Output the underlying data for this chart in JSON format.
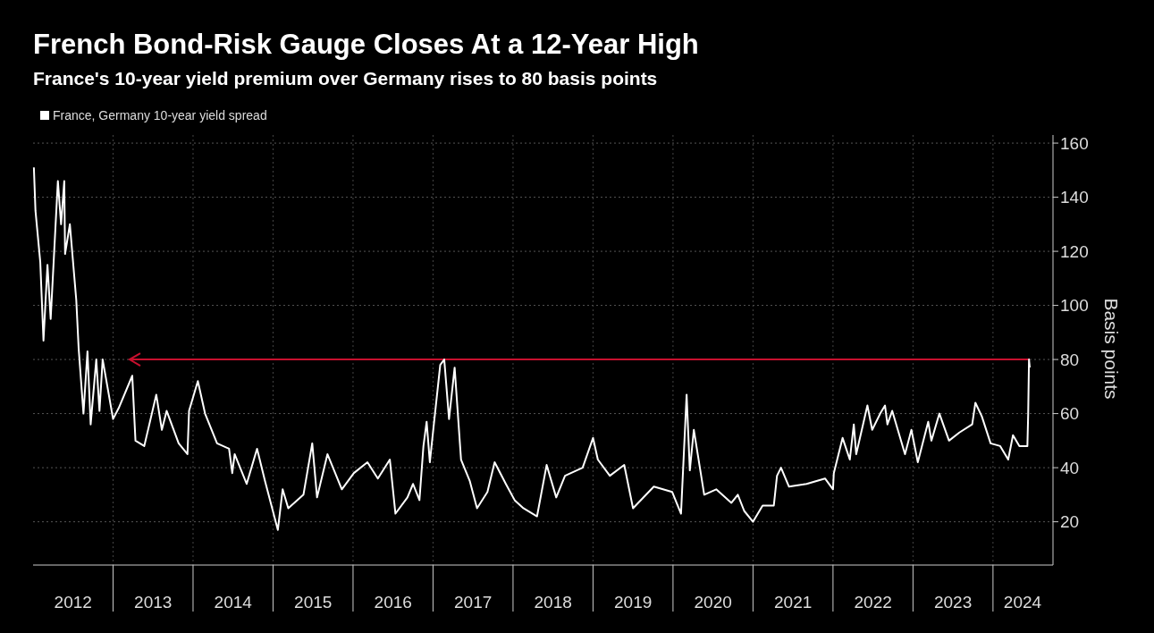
{
  "chart_data": {
    "type": "line",
    "title": "French Bond-Risk Gauge Closes At a 12-Year High",
    "subtitle": "France's 10-year yield premium over Germany rises to 80 basis points",
    "ylabel": "Basis points",
    "legend": "top left",
    "grid": true,
    "marker": "none",
    "line_style": "solid",
    "xlim": [
      2012,
      2024.75
    ],
    "ylim": [
      4,
      163
    ],
    "xticks": [
      {
        "value": 2012.5,
        "label": "2012"
      },
      {
        "value": 2013,
        "label": null
      },
      {
        "value": 2013.5,
        "label": "2013"
      },
      {
        "value": 2014,
        "label": null
      },
      {
        "value": 2014.5,
        "label": "2014"
      },
      {
        "value": 2015,
        "label": null
      },
      {
        "value": 2015.5,
        "label": "2015"
      },
      {
        "value": 2016,
        "label": null
      },
      {
        "value": 2016.5,
        "label": "2016"
      },
      {
        "value": 2017,
        "label": null
      },
      {
        "value": 2017.5,
        "label": "2017"
      },
      {
        "value": 2018,
        "label": null
      },
      {
        "value": 2018.5,
        "label": "2018"
      },
      {
        "value": 2019,
        "label": null
      },
      {
        "value": 2019.5,
        "label": "2019"
      },
      {
        "value": 2020,
        "label": null
      },
      {
        "value": 2020.5,
        "label": "2020"
      },
      {
        "value": 2021,
        "label": null
      },
      {
        "value": 2021.5,
        "label": "2021"
      },
      {
        "value": 2022,
        "label": null
      },
      {
        "value": 2022.5,
        "label": "2022"
      },
      {
        "value": 2023,
        "label": null
      },
      {
        "value": 2023.5,
        "label": "2023"
      },
      {
        "value": 2024,
        "label": null
      },
      {
        "value": 2024.37,
        "label": "2024"
      }
    ],
    "yticks": [
      20,
      40,
      60,
      80,
      100,
      120,
      140,
      160
    ],
    "ref_lines": [
      {
        "axis": "y",
        "value": 80,
        "color": "#c8102e"
      }
    ],
    "series": [
      {
        "name": "France, Germany 10-year yield spread",
        "color": "#ffffff",
        "x": [
          2012.01,
          2012.03,
          2012.09,
          2012.13,
          2012.18,
          2012.22,
          2012.31,
          2012.35,
          2012.39,
          2012.4,
          2012.46,
          2012.54,
          2012.57,
          2012.63,
          2012.68,
          2012.72,
          2012.79,
          2012.83,
          2012.87,
          2013.0,
          2013.07,
          2013.24,
          2013.28,
          2013.39,
          2013.54,
          2013.61,
          2013.67,
          2013.82,
          2013.93,
          2013.95,
          2014.06,
          2014.15,
          2014.3,
          2014.45,
          2014.49,
          2014.52,
          2014.67,
          2014.8,
          2014.9,
          2015.06,
          2015.12,
          2015.19,
          2015.38,
          2015.49,
          2015.55,
          2015.68,
          2015.86,
          2016.01,
          2016.18,
          2016.31,
          2016.46,
          2016.53,
          2016.68,
          2016.75,
          2016.83,
          2016.88,
          2016.92,
          2016.96,
          2017.01,
          2017.09,
          2017.14,
          2017.2,
          2017.27,
          2017.35,
          2017.46,
          2017.55,
          2017.68,
          2017.77,
          2017.91,
          2018.02,
          2018.13,
          2018.3,
          2018.42,
          2018.54,
          2018.65,
          2018.87,
          2019.0,
          2019.06,
          2019.21,
          2019.39,
          2019.5,
          2019.76,
          2019.99,
          2020.1,
          2020.17,
          2020.21,
          2020.26,
          2020.39,
          2020.54,
          2020.73,
          2020.81,
          2020.89,
          2021.0,
          2021.12,
          2021.26,
          2021.3,
          2021.35,
          2021.45,
          2021.67,
          2021.9,
          2022.0,
          2022.01,
          2022.12,
          2022.21,
          2022.26,
          2022.29,
          2022.43,
          2022.49,
          2022.59,
          2022.65,
          2022.68,
          2022.74,
          2022.9,
          2022.98,
          2023.06,
          2023.19,
          2023.23,
          2023.33,
          2023.45,
          2023.58,
          2023.74,
          2023.78,
          2023.86,
          2023.97,
          2024.09,
          2024.19,
          2024.25,
          2024.33,
          2024.43,
          2024.44,
          2024.45,
          2024.46
        ],
        "values": [
          151,
          135,
          116,
          87,
          115,
          95,
          146,
          130,
          146,
          119,
          130,
          102,
          84,
          60,
          83,
          56,
          80,
          61,
          80,
          58,
          62,
          74,
          50,
          48,
          67,
          54,
          61,
          49,
          45,
          61,
          72,
          60,
          49,
          47,
          38,
          45,
          34,
          47,
          35,
          17,
          32,
          25,
          30,
          49,
          29,
          45,
          32,
          38,
          42,
          36,
          43,
          23,
          29,
          34,
          28,
          48,
          57,
          42,
          56,
          78,
          80,
          58,
          77,
          43,
          35,
          25,
          31,
          42,
          34,
          28,
          25,
          22,
          41,
          29,
          37,
          40,
          51,
          43,
          37,
          41,
          25,
          33,
          31,
          23,
          67,
          39,
          54,
          30,
          32,
          27,
          30,
          24,
          20,
          26,
          26,
          37,
          40,
          33,
          34,
          36,
          32,
          38,
          51,
          43,
          56,
          45,
          63,
          54,
          60,
          63,
          56,
          61,
          45,
          54,
          42,
          57,
          50,
          60,
          50,
          53,
          56,
          64,
          59,
          49,
          48,
          43,
          52,
          48,
          48,
          60,
          80,
          77
        ]
      }
    ]
  }
}
